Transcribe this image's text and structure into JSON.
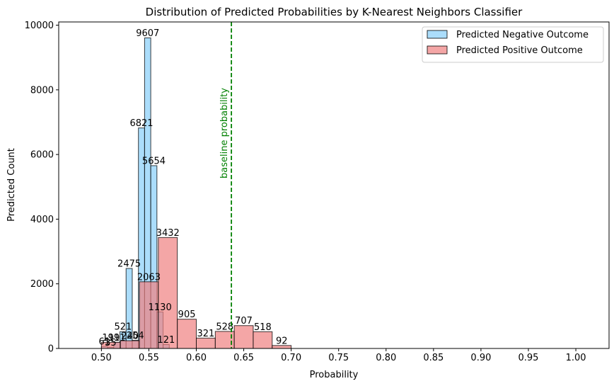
{
  "chart_data": {
    "type": "bar",
    "title": "Distribution of Predicted Probabilities by K-Nearest Neighbors Classifier",
    "xlabel": "Probability",
    "ylabel": "Predicted Count",
    "xlim": [
      0.455,
      1.035
    ],
    "ylim": [
      0,
      10100
    ],
    "xticks": [
      "0.50",
      "0.55",
      "0.60",
      "0.65",
      "0.70",
      "0.75",
      "0.80",
      "0.85",
      "0.90",
      "0.95",
      "1.00"
    ],
    "xtick_values": [
      0.5,
      0.55,
      0.6,
      0.65,
      0.7,
      0.75,
      0.8,
      0.85,
      0.9,
      0.95,
      1.0
    ],
    "yticks": [
      "0",
      "2000",
      "4000",
      "6000",
      "8000",
      "10000"
    ],
    "ytick_values": [
      0,
      2000,
      4000,
      6000,
      8000,
      10000
    ],
    "grid": false,
    "legend_position": "top-right",
    "series": [
      {
        "name": "Predicted Negative Outcome",
        "color": "#87CEFA",
        "bins": [
          {
            "x0": 0.5,
            "x1": 0.5065,
            "value": 61
          },
          {
            "x0": 0.5065,
            "x1": 0.513,
            "value": 35
          },
          {
            "x0": 0.513,
            "x1": 0.5195,
            "value": 191
          },
          {
            "x0": 0.5195,
            "x1": 0.526,
            "value": 521
          },
          {
            "x0": 0.526,
            "x1": 0.5325,
            "value": 2475
          },
          {
            "x0": 0.5325,
            "x1": 0.539,
            "value": 254
          },
          {
            "x0": 0.539,
            "x1": 0.5455,
            "value": 6821
          },
          {
            "x0": 0.5455,
            "x1": 0.552,
            "value": 9607
          },
          {
            "x0": 0.552,
            "x1": 0.5585,
            "value": 5654
          },
          {
            "x0": 0.5585,
            "x1": 0.565,
            "value": 1130
          },
          {
            "x0": 0.565,
            "x1": 0.5715,
            "value": 121
          }
        ]
      },
      {
        "name": "Predicted Positive Outcome",
        "color": "#F08080",
        "bins": [
          {
            "x0": 0.5,
            "x1": 0.52,
            "value": 191
          },
          {
            "x0": 0.52,
            "x1": 0.54,
            "value": 240
          },
          {
            "x0": 0.54,
            "x1": 0.56,
            "value": 2063
          },
          {
            "x0": 0.56,
            "x1": 0.58,
            "value": 3432
          },
          {
            "x0": 0.58,
            "x1": 0.6,
            "value": 905
          },
          {
            "x0": 0.6,
            "x1": 0.62,
            "value": 321
          },
          {
            "x0": 0.62,
            "x1": 0.64,
            "value": 528
          },
          {
            "x0": 0.64,
            "x1": 0.66,
            "value": 707
          },
          {
            "x0": 0.66,
            "x1": 0.68,
            "value": 518
          },
          {
            "x0": 0.68,
            "x1": 0.7,
            "value": 92
          }
        ]
      }
    ],
    "reference_line": {
      "x": 0.637,
      "label": "baseline probability",
      "color": "#008000"
    }
  }
}
